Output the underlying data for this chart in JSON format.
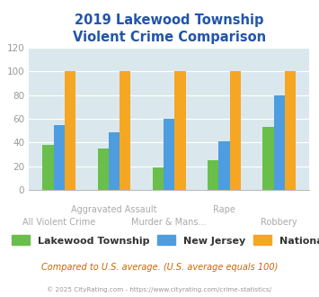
{
  "title": "2019 Lakewood Township\nViolent Crime Comparison",
  "categories": [
    "All Violent Crime",
    "Aggravated Assault",
    "Murder & Mans...",
    "Rape",
    "Robbery"
  ],
  "cat_row": [
    1,
    0,
    1,
    0,
    1
  ],
  "series": {
    "Lakewood Township": [
      38,
      35,
      19,
      25,
      53
    ],
    "New Jersey": [
      55,
      49,
      60,
      41,
      80
    ],
    "National": [
      100,
      100,
      100,
      100,
      100
    ]
  },
  "colors": {
    "Lakewood Township": "#6abf4b",
    "New Jersey": "#4d9de0",
    "National": "#f5a623"
  },
  "ylim": [
    0,
    120
  ],
  "yticks": [
    0,
    20,
    40,
    60,
    80,
    100,
    120
  ],
  "plot_bg": "#dae8ee",
  "title_color": "#2255aa",
  "title_fontsize": 10.5,
  "tick_label_color": "#999999",
  "legend_label_color": "#333333",
  "footnote1": "Compared to U.S. average. (U.S. average equals 100)",
  "footnote2": "© 2025 CityRating.com - https://www.cityrating.com/crime-statistics/",
  "footnote1_color": "#cc6600",
  "footnote2_color": "#999999",
  "cat_label_color": "#aaaaaa",
  "cat_label_fontsize": 7.0,
  "bar_width": 0.2,
  "group_width": 0.85
}
